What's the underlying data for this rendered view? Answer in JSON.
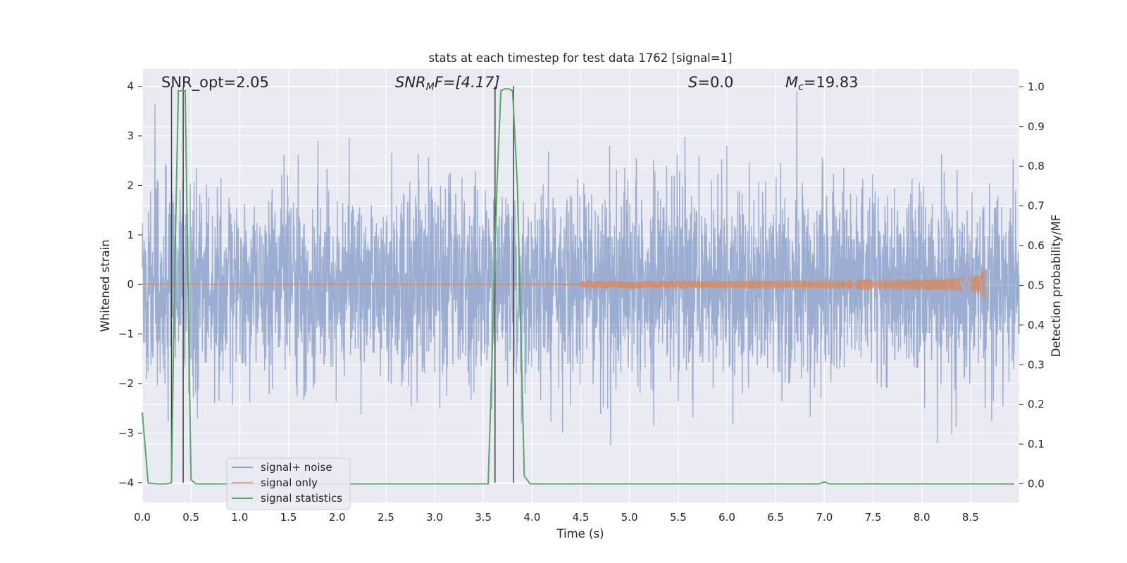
{
  "chart_data": {
    "type": "line",
    "title": "stats at each timestep for test data 1762 [signal=1]",
    "xlabel": "Time (s)",
    "ylabel": "Whitened strain",
    "y2label": "Detection probability/MF",
    "xlim": [
      0,
      9.0
    ],
    "ylim": [
      -4.4,
      4.35
    ],
    "y2lim": [
      -0.047,
      1.045
    ],
    "x_ticks": [
      "0.0",
      "0.5",
      "1.0",
      "1.5",
      "2.0",
      "2.5",
      "3.0",
      "3.5",
      "4.0",
      "4.5",
      "5.0",
      "5.5",
      "6.0",
      "6.5",
      "7.0",
      "7.5",
      "8.0",
      "8.5"
    ],
    "y_ticks": [
      "4",
      "3",
      "2",
      "1",
      "0",
      "−1",
      "−2",
      "−3",
      "−4"
    ],
    "y2_ticks": [
      "1.0",
      "0.9",
      "0.8",
      "0.7",
      "0.6",
      "0.5",
      "0.4",
      "0.3",
      "0.2",
      "0.1",
      "0.0"
    ],
    "grid": true,
    "legend_position": "lower-left",
    "annotations": {
      "snr_opt": "SNR_opt=2.05",
      "snr_mf_base": "SNR",
      "snr_mf_sub": "M",
      "snr_mf_rest": "F=[4.17]",
      "s_var": "S",
      "s_rest": "=0.0",
      "mc_var": "M",
      "mc_sub": "c",
      "mc_rest": "=19.83"
    },
    "series": [
      {
        "name": "signal+ noise",
        "color": "#4c72b0",
        "opacity": 0.5,
        "description_values": "dense noise trace, roughly within ±2.5, spikes to about ±3.5",
        "noise_amplitude": 1.0,
        "x_range": [
          0,
          9.0
        ]
      },
      {
        "name": "signal only",
        "color": "#dd8452",
        "chirp_end_time": 8.65,
        "chirp_peak_amplitude": 0.42
      },
      {
        "name": "signal statistics",
        "color": "#55a868",
        "axis": "right",
        "points": [
          [
            0.0,
            0.18
          ],
          [
            0.06,
            0.002
          ],
          [
            0.15,
            0.0
          ],
          [
            0.25,
            0.0
          ],
          [
            0.3,
            0.003
          ],
          [
            0.33,
            0.5
          ],
          [
            0.37,
            0.99
          ],
          [
            0.41,
            0.99
          ],
          [
            0.44,
            0.99
          ],
          [
            0.47,
            0.5
          ],
          [
            0.5,
            0.01
          ],
          [
            0.55,
            0.0
          ],
          [
            1.0,
            0.0
          ],
          [
            2.0,
            0.0
          ],
          [
            3.0,
            0.0
          ],
          [
            3.55,
            0.0
          ],
          [
            3.6,
            0.4
          ],
          [
            3.64,
            0.75
          ],
          [
            3.68,
            0.99
          ],
          [
            3.72,
            0.995
          ],
          [
            3.76,
            0.995
          ],
          [
            3.8,
            0.99
          ],
          [
            3.85,
            0.75
          ],
          [
            3.92,
            0.02
          ],
          [
            3.98,
            0.0
          ],
          [
            5.0,
            0.0
          ],
          [
            6.0,
            0.0
          ],
          [
            6.95,
            0.0
          ],
          [
            7.0,
            0.005
          ],
          [
            7.05,
            0.0
          ],
          [
            8.0,
            0.0
          ],
          [
            8.95,
            0.0
          ]
        ]
      }
    ],
    "vertical_markers": [
      0.3,
      0.42,
      3.62,
      3.81
    ],
    "colors": {
      "plot_background": "#eaeaf2",
      "grid": "#ffffff",
      "text": "#262626",
      "marker_line": "#404040"
    }
  }
}
